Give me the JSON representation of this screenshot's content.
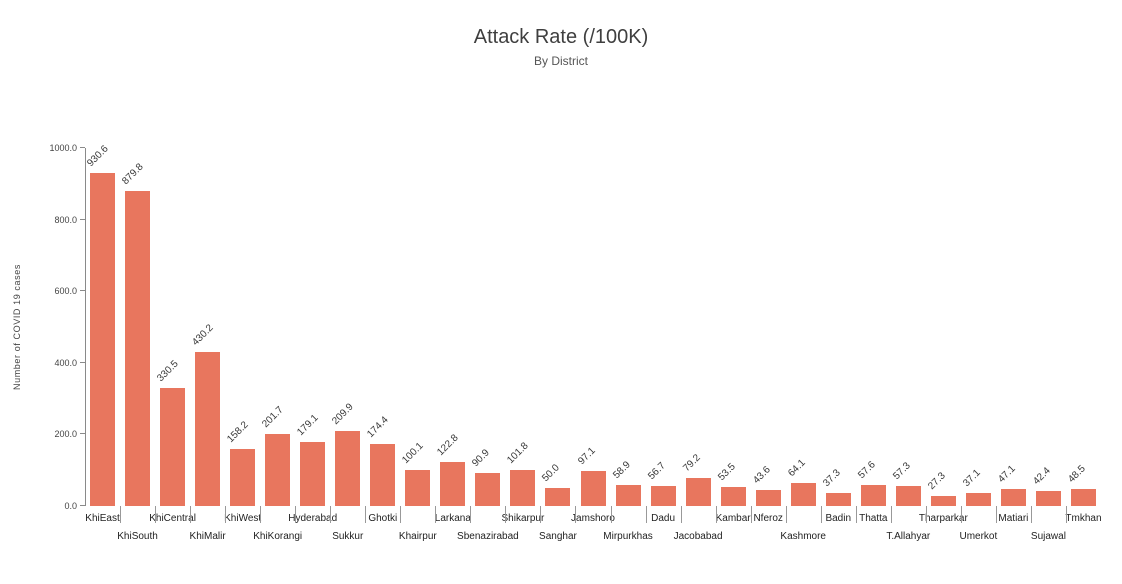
{
  "chart": {
    "title": "Attack Rate (/100K)",
    "subtitle": "By District",
    "ylabel": "Number of COVID 19 cases"
  },
  "chart_data": {
    "type": "bar",
    "title": "Attack Rate (/100K)",
    "subtitle": "By District",
    "xlabel": "",
    "ylabel": "Number of COVID 19 cases",
    "ylim": [
      0,
      1000
    ],
    "yticks": [
      0,
      200,
      400,
      600,
      800,
      1000
    ],
    "ytick_labels": [
      "0.0",
      "200.0",
      "400.0",
      "600.0",
      "800.0",
      "1000.0"
    ],
    "grid": false,
    "legend": "none",
    "bar_color": "#e8765e",
    "categories": [
      "KhiEast",
      "KhiSouth",
      "KhiCentral",
      "KhiMalir",
      "KhiWest",
      "KhiKorangi",
      "Hyderabad",
      "Sukkur",
      "Ghotki",
      "Khairpur",
      "Larkana",
      "Sbenazirabad",
      "Shikarpur",
      "Sanghar",
      "Jamshoro",
      "Mirpurkhas",
      "Dadu",
      "Jacobabad",
      "Kambar",
      "Nferoz",
      "Kashmore",
      "Badin",
      "Thatta",
      "T.Allahyar",
      "Tharparkar",
      "Umerkot",
      "Matiari",
      "Sujawal",
      "Tmkhan"
    ],
    "values": [
      930.6,
      879.8,
      330.5,
      430.2,
      158.2,
      201.7,
      179.1,
      209.9,
      174.4,
      100.1,
      122.8,
      90.9,
      101.8,
      50.0,
      97.1,
      58.9,
      56.7,
      79.2,
      53.5,
      43.6,
      64.1,
      37.3,
      57.6,
      57.3,
      27.3,
      37.1,
      47.1,
      42.4,
      48.5
    ],
    "label_row": [
      0,
      1,
      0,
      1,
      0,
      1,
      0,
      1,
      0,
      1,
      0,
      1,
      0,
      1,
      0,
      1,
      0,
      1,
      0,
      0,
      1,
      0,
      0,
      1,
      0,
      1,
      0,
      1,
      0
    ]
  }
}
